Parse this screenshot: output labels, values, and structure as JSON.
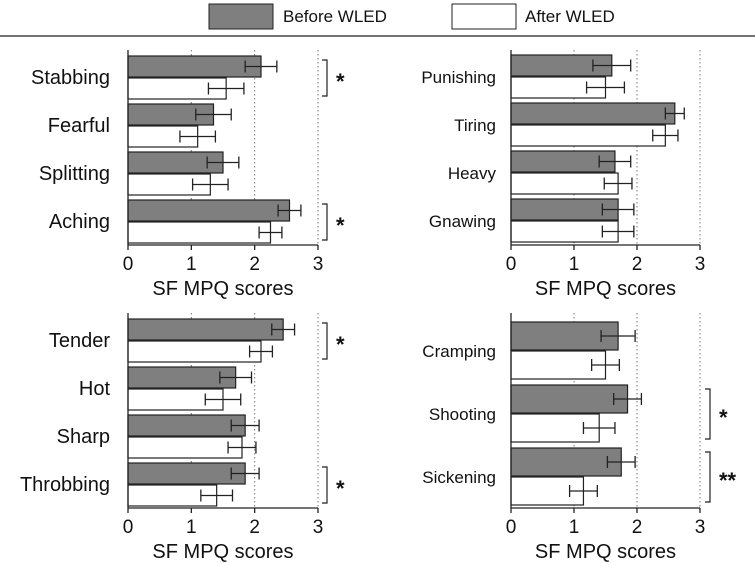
{
  "legend": {
    "before_label": "Before WLED",
    "after_label": "After WLED",
    "before_color": "#7f7f7f",
    "after_color": "#ffffff"
  },
  "chart_data": [
    {
      "type": "bar",
      "orientation": "horizontal",
      "position": "top-left",
      "xlabel": "SF MPQ scores",
      "xlim": [
        0,
        3
      ],
      "xticks": [
        0,
        1,
        2,
        3
      ],
      "categories": [
        "Stabbing",
        "Fearful",
        "Splitting",
        "Aching"
      ],
      "series": [
        {
          "name": "Before WLED",
          "values": [
            2.1,
            1.35,
            1.5,
            2.55
          ],
          "errors": [
            0.25,
            0.28,
            0.25,
            0.18
          ]
        },
        {
          "name": "After WLED",
          "values": [
            1.55,
            1.1,
            1.3,
            2.25
          ],
          "errors": [
            0.28,
            0.28,
            0.28,
            0.18
          ]
        }
      ],
      "significance": [
        "*",
        "",
        "",
        "*"
      ]
    },
    {
      "type": "bar",
      "orientation": "horizontal",
      "position": "top-right",
      "xlabel": "SF MPQ scores",
      "xlim": [
        0,
        3
      ],
      "xticks": [
        0,
        1,
        2,
        3
      ],
      "categories": [
        "Punishing",
        "Tiring",
        "Heavy",
        "Gnawing"
      ],
      "series": [
        {
          "name": "Before WLED",
          "values": [
            1.6,
            2.6,
            1.65,
            1.7
          ],
          "errors": [
            0.3,
            0.15,
            0.25,
            0.25
          ]
        },
        {
          "name": "After WLED",
          "values": [
            1.5,
            2.45,
            1.7,
            1.7
          ],
          "errors": [
            0.3,
            0.2,
            0.22,
            0.25
          ]
        }
      ],
      "significance": [
        "",
        "",
        "",
        ""
      ]
    },
    {
      "type": "bar",
      "orientation": "horizontal",
      "position": "bottom-left",
      "xlabel": "SF MPQ scores",
      "xlim": [
        0,
        3
      ],
      "xticks": [
        0,
        1,
        2,
        3
      ],
      "categories": [
        "Tender",
        "Hot",
        "Sharp",
        "Throbbing"
      ],
      "series": [
        {
          "name": "Before WLED",
          "values": [
            2.45,
            1.7,
            1.85,
            1.85
          ],
          "errors": [
            0.18,
            0.25,
            0.22,
            0.22
          ]
        },
        {
          "name": "After WLED",
          "values": [
            2.1,
            1.5,
            1.8,
            1.4
          ],
          "errors": [
            0.18,
            0.28,
            0.22,
            0.25
          ]
        }
      ],
      "significance": [
        "*",
        "",
        "",
        "*"
      ]
    },
    {
      "type": "bar",
      "orientation": "horizontal",
      "position": "bottom-right",
      "xlabel": "SF MPQ scores",
      "xlim": [
        0,
        3
      ],
      "xticks": [
        0,
        1,
        2,
        3
      ],
      "categories": [
        "Cramping",
        "Shooting",
        "Sickening"
      ],
      "series": [
        {
          "name": "Before WLED",
          "values": [
            1.7,
            1.85,
            1.75
          ],
          "errors": [
            0.27,
            0.22,
            0.22
          ]
        },
        {
          "name": "After WLED",
          "values": [
            1.5,
            1.4,
            1.15
          ],
          "errors": [
            0.22,
            0.25,
            0.22
          ]
        }
      ],
      "significance": [
        "",
        "*",
        "**"
      ]
    }
  ]
}
